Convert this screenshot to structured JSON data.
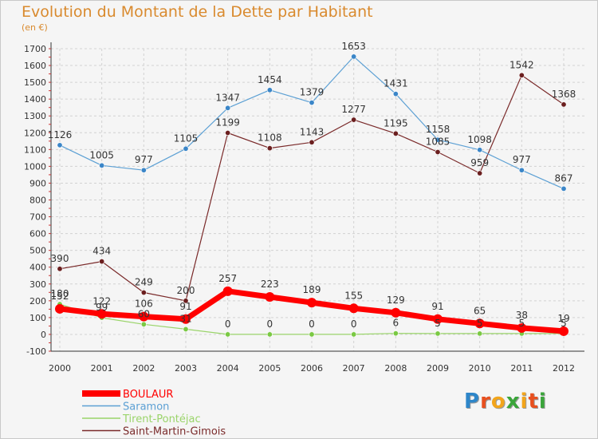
{
  "header": {
    "title": "Evolution du Montant de la Dette par Habitant",
    "subtitle": "(en €)"
  },
  "logo": {
    "letters": [
      "P",
      "r",
      "o",
      "x",
      "i",
      "t",
      "i"
    ],
    "colors": [
      "#2e86c9",
      "#e8501f",
      "#f2a51c",
      "#3aa53a",
      "#f2a51c",
      "#e8501f",
      "#3aa53a"
    ]
  },
  "chart_data": {
    "type": "line",
    "title": "Evolution du Montant de la Dette par Habitant",
    "subtitle": "(en €)",
    "xlabel": "",
    "ylabel": "",
    "ylim": [
      -100,
      1700
    ],
    "yticks": [
      -100,
      0,
      100,
      200,
      300,
      400,
      500,
      600,
      700,
      800,
      900,
      1000,
      1100,
      1200,
      1300,
      1400,
      1500,
      1600,
      1700
    ],
    "grid": true,
    "legend_position": "bottom-left",
    "x": [
      "2000",
      "2001",
      "2002",
      "2003",
      "2004",
      "2005",
      "2006",
      "2007",
      "2008",
      "2009",
      "2010",
      "2011",
      "2012"
    ],
    "series": [
      {
        "name": "BOULAUR",
        "color": "#ff0000",
        "values": [
          152,
          122,
          106,
          91,
          257,
          223,
          189,
          155,
          129,
          91,
          65,
          38,
          19
        ],
        "labels": [
          "152",
          "122",
          "106",
          "91",
          "257",
          "223",
          "189",
          "155",
          "129",
          "91",
          "65",
          "38",
          "19"
        ]
      },
      {
        "name": "Saramon",
        "color": "#5ca0d4",
        "values": [
          1126,
          1005,
          977,
          1105,
          1347,
          1454,
          1379,
          1653,
          1431,
          1158,
          1098,
          977,
          867
        ],
        "labels": [
          "1126",
          "1005",
          "977",
          "1105",
          "1347",
          "1454",
          "1379",
          "1653",
          "1431",
          "1158",
          "1098",
          "977",
          "867"
        ]
      },
      {
        "name": "Tirent-Pontéjac",
        "color": "#9ad46a",
        "values": [
          180,
          99,
          60,
          31,
          0,
          0,
          0,
          0,
          6,
          5,
          5,
          5,
          5
        ],
        "labels": [
          "180",
          "99",
          "60",
          "31",
          "0",
          "0",
          "0",
          "0",
          "6",
          "5",
          "5",
          "5",
          "5"
        ]
      },
      {
        "name": "Saint-Martin-Gimois",
        "color": "#7a2a2a",
        "values": [
          390,
          434,
          249,
          200,
          1199,
          1108,
          1143,
          1277,
          1195,
          1085,
          959,
          1542,
          1368
        ],
        "labels": [
          "390",
          "434",
          "249",
          "200",
          "1199",
          "1108",
          "1143",
          "1277",
          "1195",
          "1085",
          "959",
          "1542",
          "1368"
        ]
      }
    ]
  }
}
